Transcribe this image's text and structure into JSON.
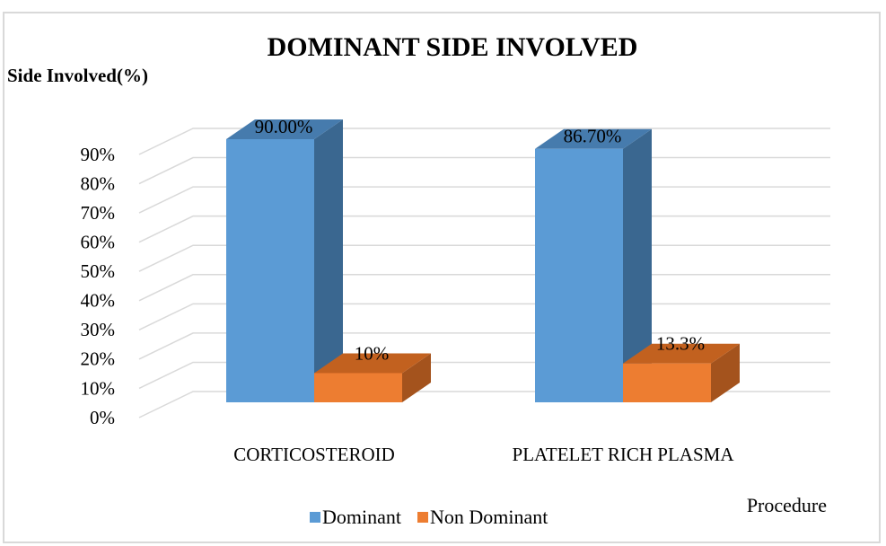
{
  "chart_data": {
    "type": "bar3d",
    "title": "DOMINANT SIDE INVOLVED",
    "y_axis_label": "Side Involved(%)",
    "x_axis_label": "Procedure",
    "categories": [
      "CORTICOSTEROID",
      "PLATELET RICH PLASMA"
    ],
    "series": [
      {
        "name": "Dominant",
        "color": "#5b9bd5",
        "side_color": "#3a6790",
        "top_color": "#467bad",
        "values": [
          90,
          86.7
        ],
        "value_labels": [
          "90.00%",
          "86.70%"
        ]
      },
      {
        "name": "Non Dominant",
        "color": "#ed7d31",
        "side_color": "#a4531d",
        "top_color": "#c2611f",
        "values": [
          10,
          13.3
        ],
        "value_labels": [
          "10%",
          "13.3%"
        ]
      }
    ],
    "ylim": [
      0,
      100
    ],
    "yticks": [
      {
        "value": 0,
        "label": "0%"
      },
      {
        "value": 10,
        "label": "10%"
      },
      {
        "value": 20,
        "label": "20%"
      },
      {
        "value": 30,
        "label": "30%"
      },
      {
        "value": 40,
        "label": "40%"
      },
      {
        "value": 50,
        "label": "50%"
      },
      {
        "value": 60,
        "label": "60%"
      },
      {
        "value": 70,
        "label": "70%"
      },
      {
        "value": 80,
        "label": "80%"
      },
      {
        "value": 90,
        "label": "90%"
      }
    ],
    "grid": true,
    "legend": "bottom"
  }
}
